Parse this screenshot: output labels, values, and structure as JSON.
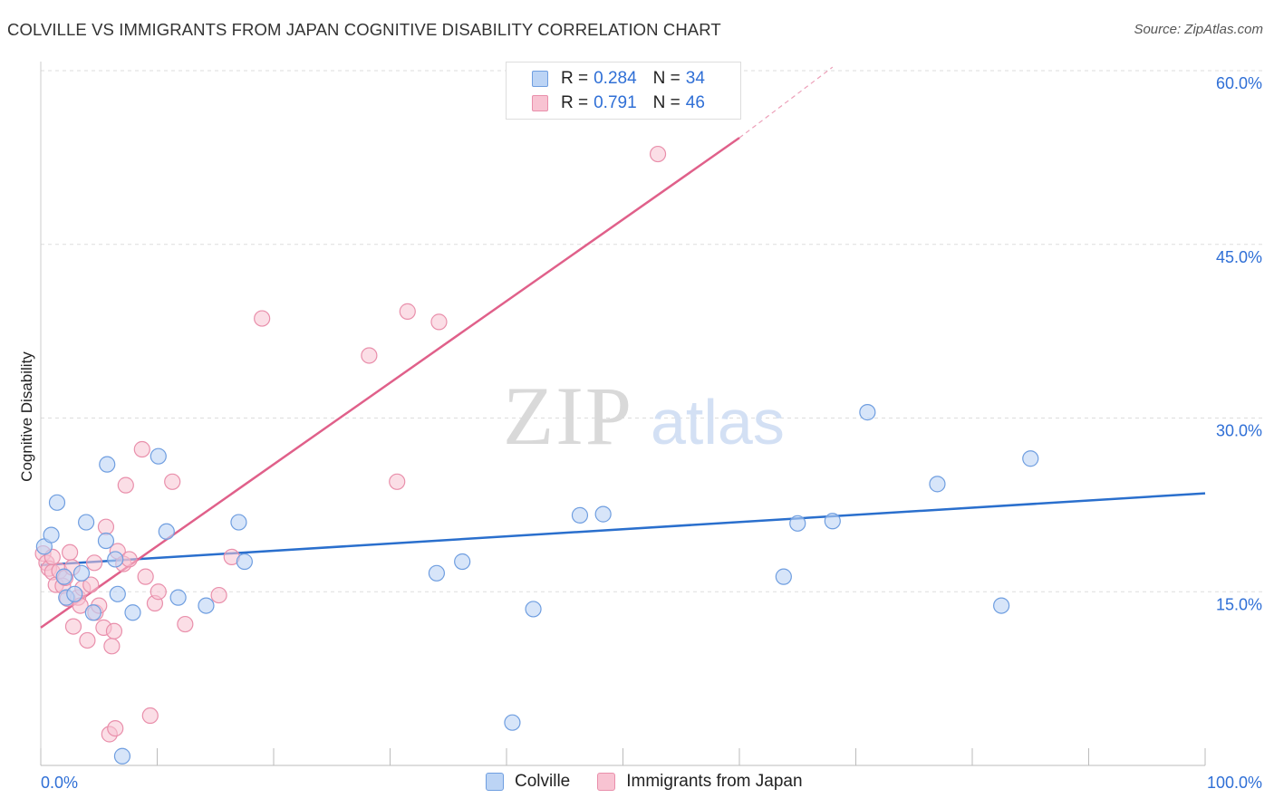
{
  "header": {
    "title": "COLVILLE VS IMMIGRANTS FROM JAPAN COGNITIVE DISABILITY CORRELATION CHART",
    "source": "Source: ZipAtlas.com"
  },
  "watermark": {
    "zip": "ZIP",
    "atlas": "atlas"
  },
  "legend": {
    "rows": [
      {
        "r_label": "R =",
        "r_value": "0.284",
        "n_label": "N =",
        "n_value": "34"
      },
      {
        "r_label": "R =",
        "r_value": "0.791",
        "n_label": "N =",
        "n_value": "46"
      }
    ]
  },
  "colors": {
    "colville_fill": "#bcd4f5",
    "colville_stroke": "#6f9ee0",
    "colville_line": "#2a6fcd",
    "japan_fill": "#f8c3d2",
    "japan_stroke": "#e98fab",
    "japan_line": "#e0608a",
    "tick_label": "#2f6fd6",
    "grid": "#dddddd"
  },
  "chart_data": {
    "type": "scatter",
    "title": "COLVILLE VS IMMIGRANTS FROM JAPAN COGNITIVE DISABILITY CORRELATION CHART",
    "xlabel": "",
    "ylabel": "Cognitive Disability",
    "xlim": [
      0,
      100
    ],
    "ylim": [
      0,
      60
    ],
    "x_tick_labels": [
      "0.0%",
      "100.0%"
    ],
    "y_ticks": [
      15,
      30,
      45,
      60
    ],
    "y_tick_labels": [
      "15.0%",
      "30.0%",
      "45.0%",
      "60.0%"
    ],
    "legend_position": "bottom-center",
    "series": [
      {
        "name": "Colville",
        "r": 0.284,
        "n": 34,
        "trend": {
          "x0": 0,
          "y0": 17.3,
          "x1": 100,
          "y1": 23.5
        },
        "points": [
          [
            0.3,
            18.9
          ],
          [
            0.9,
            19.9
          ],
          [
            1.4,
            22.7
          ],
          [
            2.0,
            16.3
          ],
          [
            2.2,
            14.5
          ],
          [
            2.9,
            14.8
          ],
          [
            3.5,
            16.6
          ],
          [
            3.9,
            21.0
          ],
          [
            4.5,
            13.2
          ],
          [
            5.6,
            19.4
          ],
          [
            5.7,
            26.0
          ],
          [
            6.4,
            17.8
          ],
          [
            6.6,
            14.8
          ],
          [
            7.0,
            0.8
          ],
          [
            7.9,
            13.2
          ],
          [
            10.1,
            26.7
          ],
          [
            10.8,
            20.2
          ],
          [
            11.8,
            14.5
          ],
          [
            14.2,
            13.8
          ],
          [
            17.0,
            21.0
          ],
          [
            17.5,
            17.6
          ],
          [
            34.0,
            16.6
          ],
          [
            36.2,
            17.6
          ],
          [
            40.5,
            3.7
          ],
          [
            42.3,
            13.5
          ],
          [
            46.3,
            21.6
          ],
          [
            48.3,
            21.7
          ],
          [
            63.8,
            16.3
          ],
          [
            65.0,
            20.9
          ],
          [
            68.0,
            21.1
          ],
          [
            71.0,
            30.5
          ],
          [
            77.0,
            24.3
          ],
          [
            85.0,
            26.5
          ],
          [
            82.5,
            13.8
          ]
        ]
      },
      {
        "name": "Immigrants from Japan",
        "r": 0.791,
        "n": 46,
        "trend": {
          "x0": 0,
          "y0": 11.9,
          "x1": 60,
          "y1": 54.2,
          "dash_x1": 68,
          "dash_y1": 60.3
        },
        "points": [
          [
            0.2,
            18.3
          ],
          [
            0.5,
            17.5
          ],
          [
            0.7,
            17.0
          ],
          [
            1.0,
            16.7
          ],
          [
            1.3,
            15.6
          ],
          [
            1.6,
            16.8
          ],
          [
            1.9,
            15.5
          ],
          [
            2.1,
            16.2
          ],
          [
            2.3,
            14.4
          ],
          [
            2.5,
            18.4
          ],
          [
            2.7,
            17.1
          ],
          [
            2.8,
            12.0
          ],
          [
            3.2,
            14.5
          ],
          [
            3.4,
            13.8
          ],
          [
            3.6,
            15.3
          ],
          [
            4.0,
            10.8
          ],
          [
            4.3,
            15.6
          ],
          [
            4.6,
            17.5
          ],
          [
            4.7,
            13.2
          ],
          [
            5.0,
            13.8
          ],
          [
            5.4,
            11.9
          ],
          [
            5.6,
            20.6
          ],
          [
            5.9,
            2.7
          ],
          [
            6.1,
            10.3
          ],
          [
            6.3,
            11.6
          ],
          [
            6.4,
            3.2
          ],
          [
            6.6,
            18.5
          ],
          [
            7.1,
            17.4
          ],
          [
            7.6,
            17.8
          ],
          [
            8.7,
            27.3
          ],
          [
            9.0,
            16.3
          ],
          [
            9.4,
            4.3
          ],
          [
            9.8,
            14.0
          ],
          [
            10.1,
            15.0
          ],
          [
            11.3,
            24.5
          ],
          [
            12.4,
            12.2
          ],
          [
            15.3,
            14.7
          ],
          [
            16.4,
            18.0
          ],
          [
            19.0,
            38.6
          ],
          [
            30.6,
            24.5
          ],
          [
            28.2,
            35.4
          ],
          [
            31.5,
            39.2
          ],
          [
            34.2,
            38.3
          ],
          [
            53.0,
            52.8
          ],
          [
            1.0,
            18.0
          ],
          [
            7.3,
            24.2
          ]
        ]
      }
    ]
  },
  "bottom_legend": {
    "items": [
      {
        "label": "Colville"
      },
      {
        "label": "Immigrants from Japan"
      }
    ]
  }
}
